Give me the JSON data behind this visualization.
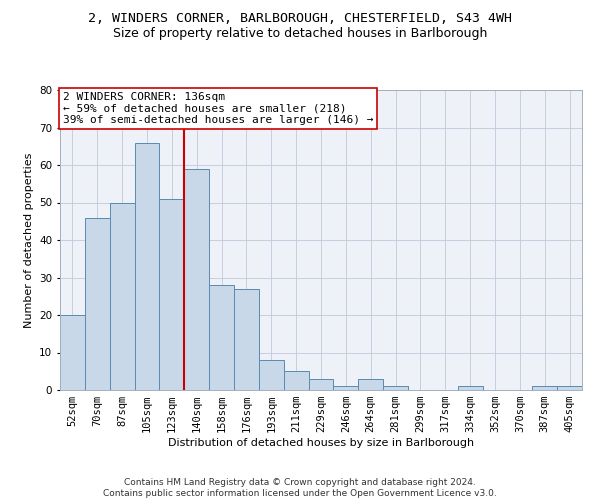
{
  "title_line1": "2, WINDERS CORNER, BARLBOROUGH, CHESTERFIELD, S43 4WH",
  "title_line2": "Size of property relative to detached houses in Barlborough",
  "xlabel": "Distribution of detached houses by size in Barlborough",
  "ylabel": "Number of detached properties",
  "categories": [
    "52sqm",
    "70sqm",
    "87sqm",
    "105sqm",
    "123sqm",
    "140sqm",
    "158sqm",
    "176sqm",
    "193sqm",
    "211sqm",
    "229sqm",
    "246sqm",
    "264sqm",
    "281sqm",
    "299sqm",
    "317sqm",
    "334sqm",
    "352sqm",
    "370sqm",
    "387sqm",
    "405sqm"
  ],
  "values": [
    20,
    46,
    50,
    66,
    51,
    59,
    28,
    27,
    8,
    5,
    3,
    1,
    3,
    1,
    0,
    0,
    1,
    0,
    0,
    1,
    1
  ],
  "bar_color": "#c8d8e8",
  "bar_edge_color": "#5a8ab0",
  "vline_x_index": 4.5,
  "vline_color": "#cc0000",
  "annotation_text": "2 WINDERS CORNER: 136sqm\n← 59% of detached houses are smaller (218)\n39% of semi-detached houses are larger (146) →",
  "annotation_box_color": "#ffffff",
  "annotation_box_edge_color": "#cc0000",
  "ylim": [
    0,
    80
  ],
  "yticks": [
    0,
    10,
    20,
    30,
    40,
    50,
    60,
    70,
    80
  ],
  "grid_color": "#c0c8d8",
  "bg_color": "#eef2f8",
  "footnote": "Contains HM Land Registry data © Crown copyright and database right 2024.\nContains public sector information licensed under the Open Government Licence v3.0.",
  "title_fontsize": 9.5,
  "subtitle_fontsize": 9,
  "axis_label_fontsize": 8,
  "tick_fontsize": 7.5,
  "annotation_fontsize": 8,
  "footnote_fontsize": 6.5
}
